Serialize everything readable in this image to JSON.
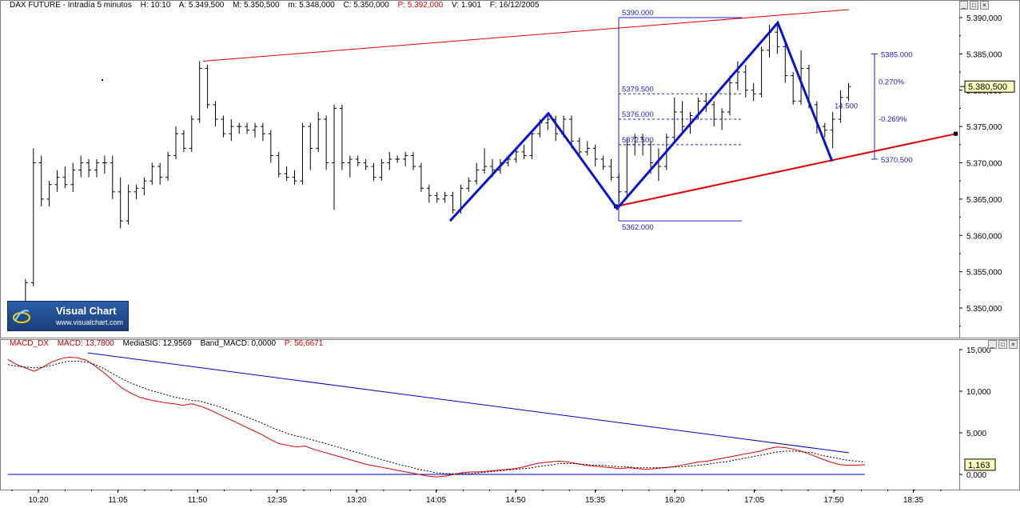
{
  "price_header": {
    "symbol": "DAX FUTURE - Intradía 5 minutos",
    "high": "H: 10:10",
    "open": "A: 5.349,500",
    "max": "M: 5.350,500",
    "min": "m: 5.348,000",
    "close": "C: 5.350,000",
    "p": "P: 5.392,000",
    "volume": "V: 1.901",
    "date": "F: 16/12/2005"
  },
  "macd_header": {
    "name": "MACD_DX",
    "macd": "MACD: 13,7800",
    "signal": "MediaSIG: 12,9569",
    "band": "Band_MACD: 0,0000",
    "p": "P: 56,6671"
  },
  "logo": {
    "title": "Visual Chart",
    "url": "www.visualchart.com"
  },
  "window_buttons": [
    "_",
    "□",
    "×"
  ],
  "colors": {
    "price_bars": "#000000",
    "trendline_red": "#e00000",
    "zigzag_blue": "#0a14d0",
    "annotation_blue": "#2020c0",
    "macd_line": "#e00000",
    "signal_line": "#000000",
    "current_price_box": "#ffffc0"
  },
  "chart_data": [
    {
      "type": "ohlc",
      "title": "DAX FUTURE - Intradía 5 minutos",
      "x_tick_labels": [
        "10:20",
        "11:05",
        "11:50",
        "12:35",
        "13:20",
        "14:05",
        "14:50",
        "15:35",
        "16:20",
        "17:05",
        "17:50",
        "18:35"
      ],
      "y_tick_labels": [
        "5.350,000",
        "5.355,000",
        "5.360,000",
        "5.365,000",
        "5.370,000",
        "5.375,000",
        "5.380,000",
        "5.385,000",
        "5.390,000"
      ],
      "ylim": [
        5345,
        5392
      ],
      "grid": false,
      "current_price": "5.380,500",
      "bars": [
        [
          5350.0,
          5350.5,
          5348.0,
          5350.0
        ],
        [
          5350.5,
          5354.0,
          5349.5,
          5353.5
        ],
        [
          5353.5,
          5372.0,
          5353.0,
          5370.0
        ],
        [
          5370.0,
          5371.0,
          5364.0,
          5365.0
        ],
        [
          5365.0,
          5367.5,
          5364.0,
          5367.0
        ],
        [
          5367.0,
          5369.0,
          5366.0,
          5368.0
        ],
        [
          5368.0,
          5369.5,
          5366.5,
          5367.0
        ],
        [
          5367.0,
          5370.0,
          5366.0,
          5369.0
        ],
        [
          5369.0,
          5371.0,
          5368.0,
          5370.0
        ],
        [
          5370.0,
          5370.5,
          5368.0,
          5369.0
        ],
        [
          5369.0,
          5370.5,
          5368.0,
          5370.0
        ],
        [
          5370.0,
          5371.0,
          5368.5,
          5370.0
        ],
        [
          5370.0,
          5371.0,
          5365.0,
          5366.0
        ],
        [
          5366.0,
          5368.0,
          5361.0,
          5362.0
        ],
        [
          5362.0,
          5367.0,
          5361.5,
          5366.0
        ],
        [
          5366.0,
          5367.0,
          5365.0,
          5366.5
        ],
        [
          5366.5,
          5368.0,
          5365.5,
          5367.5
        ],
        [
          5367.5,
          5370.0,
          5367.0,
          5369.5
        ],
        [
          5369.5,
          5370.0,
          5367.0,
          5368.0
        ],
        [
          5368.0,
          5371.5,
          5367.5,
          5371.0
        ],
        [
          5371.0,
          5375.0,
          5370.5,
          5374.0
        ],
        [
          5374.0,
          5374.5,
          5371.5,
          5372.0
        ],
        [
          5372.0,
          5376.5,
          5371.5,
          5376.0
        ],
        [
          5376.0,
          5384.0,
          5375.5,
          5383.0
        ],
        [
          5383.0,
          5383.5,
          5377.5,
          5378.0
        ],
        [
          5378.0,
          5378.5,
          5375.0,
          5376.0
        ],
        [
          5376.0,
          5376.5,
          5373.5,
          5374.0
        ],
        [
          5374.0,
          5376.0,
          5373.0,
          5375.0
        ],
        [
          5375.0,
          5375.5,
          5374.0,
          5375.0
        ],
        [
          5375.0,
          5375.5,
          5374.0,
          5374.5
        ],
        [
          5374.5,
          5375.5,
          5373.5,
          5375.0
        ],
        [
          5375.0,
          5375.5,
          5373.0,
          5374.0
        ],
        [
          5374.0,
          5374.5,
          5370.0,
          5371.0
        ],
        [
          5371.0,
          5371.5,
          5368.0,
          5368.5
        ],
        [
          5368.5,
          5369.5,
          5367.5,
          5368.0
        ],
        [
          5368.0,
          5369.0,
          5367.0,
          5367.5
        ],
        [
          5367.5,
          5375.5,
          5367.0,
          5375.0
        ],
        [
          5375.0,
          5375.5,
          5369.0,
          5372.0
        ],
        [
          5372.0,
          5377.0,
          5371.5,
          5376.0
        ],
        [
          5376.0,
          5376.5,
          5369.0,
          5370.0
        ],
        [
          5370.0,
          5378.0,
          5363.5,
          5377.5
        ],
        [
          5377.5,
          5378.0,
          5369.0,
          5370.0
        ],
        [
          5370.0,
          5371.0,
          5368.0,
          5370.5
        ],
        [
          5370.5,
          5371.0,
          5369.5,
          5370.0
        ],
        [
          5370.0,
          5370.5,
          5369.0,
          5369.5
        ],
        [
          5369.5,
          5370.0,
          5367.5,
          5368.0
        ],
        [
          5368.0,
          5370.5,
          5367.5,
          5370.0
        ],
        [
          5370.0,
          5371.5,
          5369.0,
          5370.5
        ],
        [
          5370.5,
          5371.0,
          5370.0,
          5370.5
        ],
        [
          5370.5,
          5371.5,
          5369.5,
          5371.0
        ],
        [
          5371.0,
          5371.5,
          5369.0,
          5369.5
        ],
        [
          5369.5,
          5370.0,
          5366.0,
          5366.5
        ],
        [
          5366.5,
          5367.0,
          5364.5,
          5365.5
        ],
        [
          5365.5,
          5366.0,
          5364.5,
          5365.0
        ],
        [
          5365.0,
          5366.0,
          5364.5,
          5365.5
        ],
        [
          5365.5,
          5366.0,
          5363.0,
          5363.5
        ],
        [
          5363.5,
          5367.0,
          5363.0,
          5366.5
        ],
        [
          5366.5,
          5368.0,
          5366.0,
          5367.5
        ],
        [
          5367.5,
          5370.0,
          5367.0,
          5369.0
        ],
        [
          5369.0,
          5372.0,
          5368.5,
          5369.5
        ],
        [
          5369.5,
          5370.5,
          5368.0,
          5369.0
        ],
        [
          5369.0,
          5370.5,
          5368.5,
          5370.0
        ],
        [
          5370.0,
          5371.0,
          5369.5,
          5370.5
        ],
        [
          5370.5,
          5372.0,
          5370.0,
          5371.5
        ],
        [
          5371.5,
          5372.5,
          5370.5,
          5371.0
        ],
        [
          5371.0,
          5374.5,
          5370.5,
          5374.0
        ],
        [
          5374.0,
          5376.0,
          5373.5,
          5375.5
        ],
        [
          5375.5,
          5376.5,
          5374.5,
          5376.0
        ],
        [
          5376.0,
          5376.5,
          5373.0,
          5374.0
        ],
        [
          5374.0,
          5376.5,
          5373.5,
          5376.0
        ],
        [
          5376.0,
          5376.5,
          5372.0,
          5373.0
        ],
        [
          5373.0,
          5373.5,
          5371.0,
          5371.5
        ],
        [
          5371.5,
          5373.0,
          5371.0,
          5372.0
        ],
        [
          5372.0,
          5372.5,
          5369.5,
          5370.5
        ],
        [
          5370.5,
          5371.0,
          5369.0,
          5369.5
        ],
        [
          5369.5,
          5370.5,
          5367.5,
          5368.0
        ],
        [
          5368.0,
          5368.5,
          5364.5,
          5366.0
        ],
        [
          5366.0,
          5373.5,
          5365.5,
          5372.5
        ],
        [
          5372.5,
          5374.0,
          5371.0,
          5373.5
        ],
        [
          5373.5,
          5374.0,
          5371.0,
          5372.5
        ],
        [
          5372.5,
          5373.0,
          5368.5,
          5370.0
        ],
        [
          5370.0,
          5372.0,
          5367.5,
          5369.5
        ],
        [
          5369.5,
          5374.0,
          5369.0,
          5373.5
        ],
        [
          5373.5,
          5379.0,
          5373.0,
          5377.0
        ],
        [
          5377.0,
          5378.5,
          5374.0,
          5375.0
        ],
        [
          5375.0,
          5377.0,
          5374.0,
          5376.5
        ],
        [
          5376.5,
          5379.0,
          5376.0,
          5378.5
        ],
        [
          5378.5,
          5379.5,
          5377.0,
          5378.0
        ],
        [
          5378.0,
          5378.5,
          5375.0,
          5376.0
        ],
        [
          5376.0,
          5377.5,
          5374.5,
          5377.0
        ],
        [
          5377.0,
          5382.0,
          5376.5,
          5381.0
        ],
        [
          5381.0,
          5384.0,
          5380.0,
          5382.5
        ],
        [
          5382.5,
          5383.5,
          5379.0,
          5380.0
        ],
        [
          5380.0,
          5381.0,
          5378.5,
          5379.5
        ],
        [
          5379.5,
          5386.0,
          5379.0,
          5385.5
        ],
        [
          5385.5,
          5389.0,
          5384.5,
          5388.0
        ],
        [
          5388.0,
          5389.0,
          5385.0,
          5386.0
        ],
        [
          5386.0,
          5386.5,
          5381.0,
          5382.0
        ],
        [
          5382.0,
          5382.5,
          5378.0,
          5378.5
        ],
        [
          5378.5,
          5385.5,
          5378.0,
          5383.0
        ],
        [
          5383.0,
          5383.5,
          5377.5,
          5378.0
        ],
        [
          5378.0,
          5378.5,
          5374.0,
          5375.0
        ],
        [
          5375.0,
          5375.5,
          5373.5,
          5374.5
        ],
        [
          5374.5,
          5377.0,
          5372.0,
          5376.0
        ],
        [
          5376.0,
          5380.0,
          5375.5,
          5379.0
        ],
        [
          5379.0,
          5381.0,
          5378.5,
          5380.5
        ]
      ],
      "annotations": {
        "fib_levels": [
          "5390.000",
          "5379.500",
          "5376.000",
          "5372.500",
          "5362.000"
        ],
        "projection_levels": [
          "5385.000",
          "5370.500"
        ],
        "percent_up": "0.270%",
        "percent_down": "-0.269%",
        "range_label": "14.500"
      }
    },
    {
      "type": "line",
      "title": "MACD_DX",
      "y_tick_labels": [
        "0,000",
        "5,000",
        "10,000",
        "15,000"
      ],
      "ylim": [
        -1,
        15
      ],
      "current_value": "1,163",
      "series": [
        {
          "name": "MACD",
          "values": [
            13.8,
            13.2,
            12.8,
            12.4,
            12.9,
            13.5,
            13.9,
            14.1,
            14.0,
            13.7,
            13.0,
            12.2,
            11.3,
            10.4,
            9.8,
            9.3,
            9.0,
            8.8,
            8.6,
            8.5,
            8.3,
            8.5,
            8.2,
            7.8,
            7.3,
            6.8,
            6.3,
            5.8,
            5.3,
            4.8,
            4.2,
            3.7,
            3.5,
            3.3,
            3.4,
            3.0,
            2.7,
            2.4,
            2.1,
            1.8,
            1.5,
            1.2,
            1.0,
            0.8,
            0.6,
            0.4,
            0.2,
            0.0,
            -0.2,
            -0.3,
            -0.2,
            0.0,
            0.2,
            0.3,
            0.3,
            0.4,
            0.5,
            0.6,
            0.7,
            0.9,
            1.2,
            1.4,
            1.5,
            1.6,
            1.5,
            1.3,
            1.1,
            1.0,
            0.9,
            0.8,
            0.7,
            0.8,
            0.7,
            0.6,
            0.7,
            0.8,
            0.9,
            1.1,
            1.3,
            1.5,
            1.6,
            1.8,
            2.0,
            2.2,
            2.4,
            2.6,
            2.8,
            3.1,
            3.3,
            3.2,
            3.0,
            2.7,
            2.3,
            1.9,
            1.5,
            1.2,
            1.1,
            1.1,
            1.16
          ]
        },
        {
          "name": "MediaSIG",
          "values": [
            13.2,
            13.0,
            12.9,
            12.8,
            12.9,
            13.1,
            13.4,
            13.6,
            13.6,
            13.5,
            13.2,
            12.7,
            12.1,
            11.5,
            11.0,
            10.6,
            10.2,
            9.9,
            9.6,
            9.3,
            9.1,
            8.9,
            8.8,
            8.5,
            8.2,
            7.8,
            7.4,
            7.0,
            6.6,
            6.2,
            5.7,
            5.3,
            4.9,
            4.6,
            4.4,
            4.1,
            3.8,
            3.5,
            3.2,
            2.9,
            2.6,
            2.3,
            2.0,
            1.7,
            1.4,
            1.1,
            0.9,
            0.6,
            0.4,
            0.2,
            0.1,
            0.1,
            0.1,
            0.1,
            0.2,
            0.3,
            0.4,
            0.5,
            0.6,
            0.7,
            0.8,
            1.0,
            1.1,
            1.3,
            1.3,
            1.3,
            1.2,
            1.1,
            1.1,
            1.0,
            0.9,
            0.9,
            0.8,
            0.8,
            0.8,
            0.8,
            0.9,
            0.9,
            1.0,
            1.1,
            1.2,
            1.4,
            1.5,
            1.7,
            1.9,
            2.1,
            2.3,
            2.5,
            2.7,
            2.8,
            2.8,
            2.7,
            2.6,
            2.3,
            2.1,
            1.9,
            1.7,
            1.6,
            1.5
          ]
        }
      ]
    }
  ]
}
